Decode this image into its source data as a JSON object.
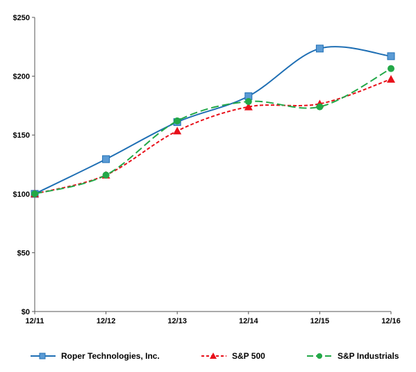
{
  "chart_data": {
    "type": "line",
    "title": "",
    "xlabel": "",
    "ylabel": "",
    "categories": [
      "12/11",
      "12/12",
      "12/13",
      "12/14",
      "12/15",
      "12/16"
    ],
    "y_ticks": [
      "$0",
      "$50",
      "$100",
      "$150",
      "$200",
      "$250"
    ],
    "ylim": [
      0,
      250
    ],
    "grid": false,
    "legend_position": "bottom",
    "series": [
      {
        "name": "Roper Technologies, Inc.",
        "values": [
          100,
          129.5,
          161,
          183,
          223.5,
          217
        ],
        "color": "#1F6FB4",
        "marker_fill": "#5B9BD5",
        "marker": "square",
        "line_style": "solid"
      },
      {
        "name": "S&P 500",
        "values": [
          100,
          116,
          153.5,
          174,
          176.5,
          197.5
        ],
        "color": "#E8101A",
        "marker_fill": "#E8101A",
        "marker": "triangle",
        "line_style": "dashed"
      },
      {
        "name": "S&P Industrials",
        "values": [
          100,
          116,
          162,
          178.5,
          174,
          206.5
        ],
        "color": "#23A848",
        "marker_fill": "#23A848",
        "marker": "circle",
        "line_style": "long-dashed"
      }
    ]
  }
}
